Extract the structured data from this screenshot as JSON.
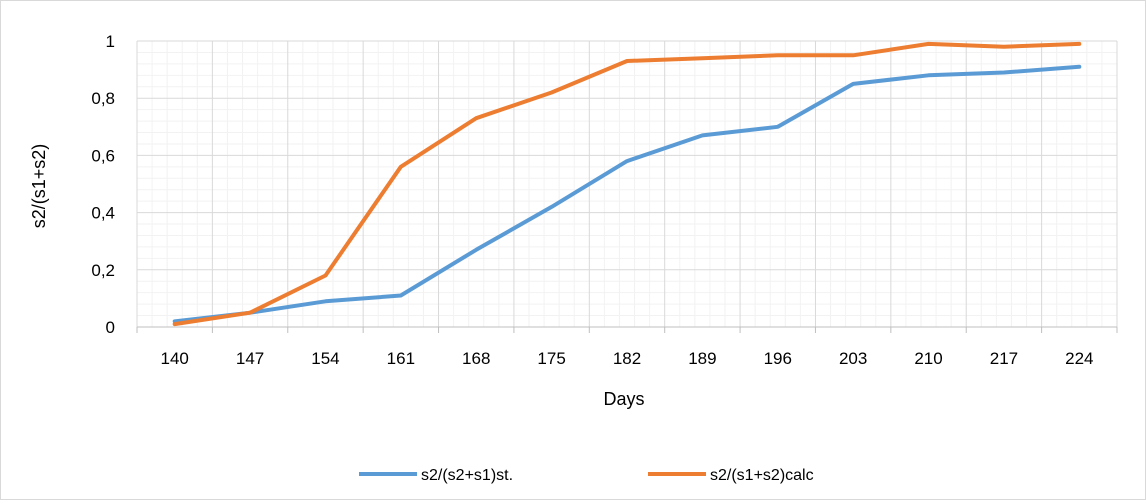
{
  "chart_data": {
    "type": "line",
    "title": "",
    "xlabel": "Days",
    "ylabel": "s2/(s1+s2)",
    "x": [
      140,
      147,
      154,
      161,
      168,
      175,
      182,
      189,
      196,
      203,
      210,
      217,
      224
    ],
    "x_tick_labels": [
      "140",
      "147",
      "154",
      "161",
      "168",
      "175",
      "182",
      "189",
      "196",
      "203",
      "210",
      "217",
      "224"
    ],
    "y_tick_labels": [
      "0",
      "0,2",
      "0,4",
      "0,6",
      "0,8",
      "1"
    ],
    "ylim": [
      0,
      1
    ],
    "grid": true,
    "legend_position": "bottom",
    "series": [
      {
        "name": "s2/(s2+s1)st.",
        "color": "#5b9bd5",
        "values": [
          0.02,
          0.05,
          0.09,
          0.11,
          0.27,
          0.42,
          0.58,
          0.67,
          0.7,
          0.85,
          0.88,
          0.89,
          0.91
        ]
      },
      {
        "name": "s2/(s1+s2)calc",
        "color": "#ed7d31",
        "values": [
          0.01,
          0.05,
          0.18,
          0.56,
          0.73,
          0.82,
          0.93,
          0.94,
          0.95,
          0.95,
          0.99,
          0.98,
          0.99
        ]
      }
    ]
  }
}
